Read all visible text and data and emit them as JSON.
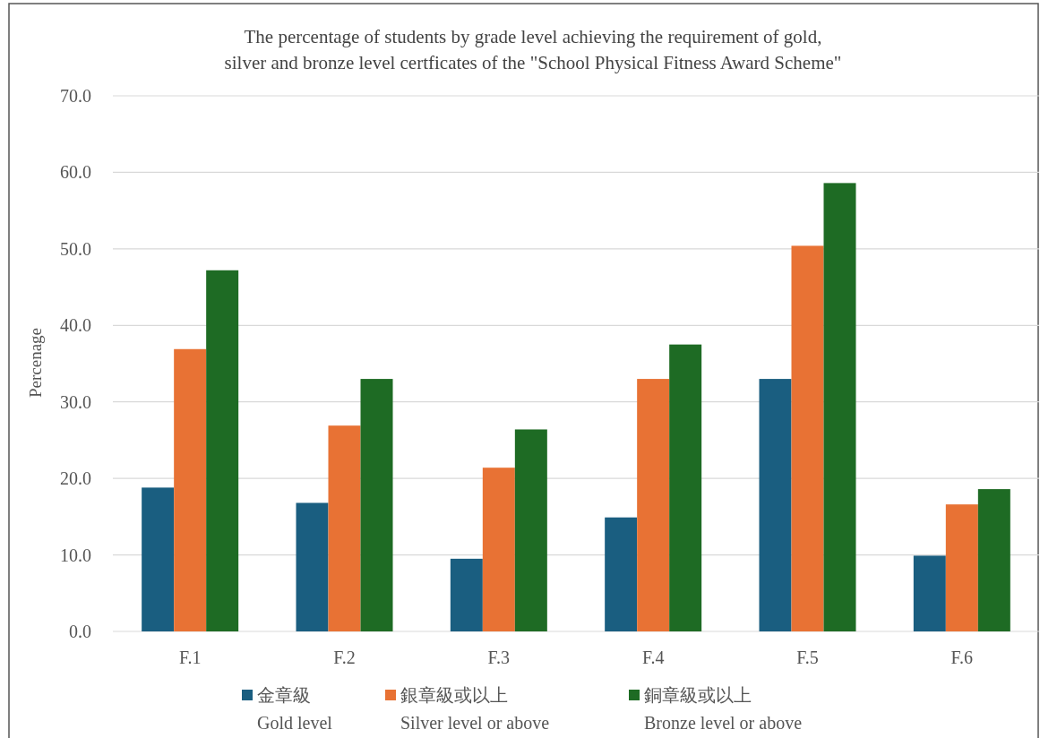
{
  "chart_data": {
    "type": "bar",
    "title": "The percentage of students by grade level achieving the requirement of gold,\nsilver and bronze level certficates of the \"School Physical Fitness Award Scheme\"",
    "ylabel": "Percenage",
    "categories": [
      "F.1",
      "F.2",
      "F.3",
      "F.4",
      "F.5",
      "F.6"
    ],
    "series": [
      {
        "name": "金章級\nGold level",
        "color": "#1a5e80",
        "values": [
          18.8,
          16.8,
          9.5,
          14.9,
          33.0,
          9.9
        ]
      },
      {
        "name": "銀章級或以上\nSilver level or above",
        "color": "#e87234",
        "values": [
          36.9,
          26.9,
          21.4,
          33.0,
          50.4,
          16.6
        ]
      },
      {
        "name": "銅章級或以上\nBronze level or above",
        "color": "#1e6b24",
        "values": [
          47.2,
          33.0,
          26.4,
          37.5,
          58.6,
          18.6
        ]
      }
    ],
    "ylim": [
      0,
      70
    ],
    "yticks": [
      {
        "value": 0,
        "label": "0.0"
      },
      {
        "value": 10,
        "label": "10.0"
      },
      {
        "value": 20,
        "label": "20.0"
      },
      {
        "value": 30,
        "label": "30.0"
      },
      {
        "value": 40,
        "label": "40.0"
      },
      {
        "value": 50,
        "label": "50.0"
      },
      {
        "value": 60,
        "label": "60.0"
      },
      {
        "value": 70,
        "label": "70.0"
      }
    ],
    "grid": "y",
    "legend": "bottom"
  }
}
